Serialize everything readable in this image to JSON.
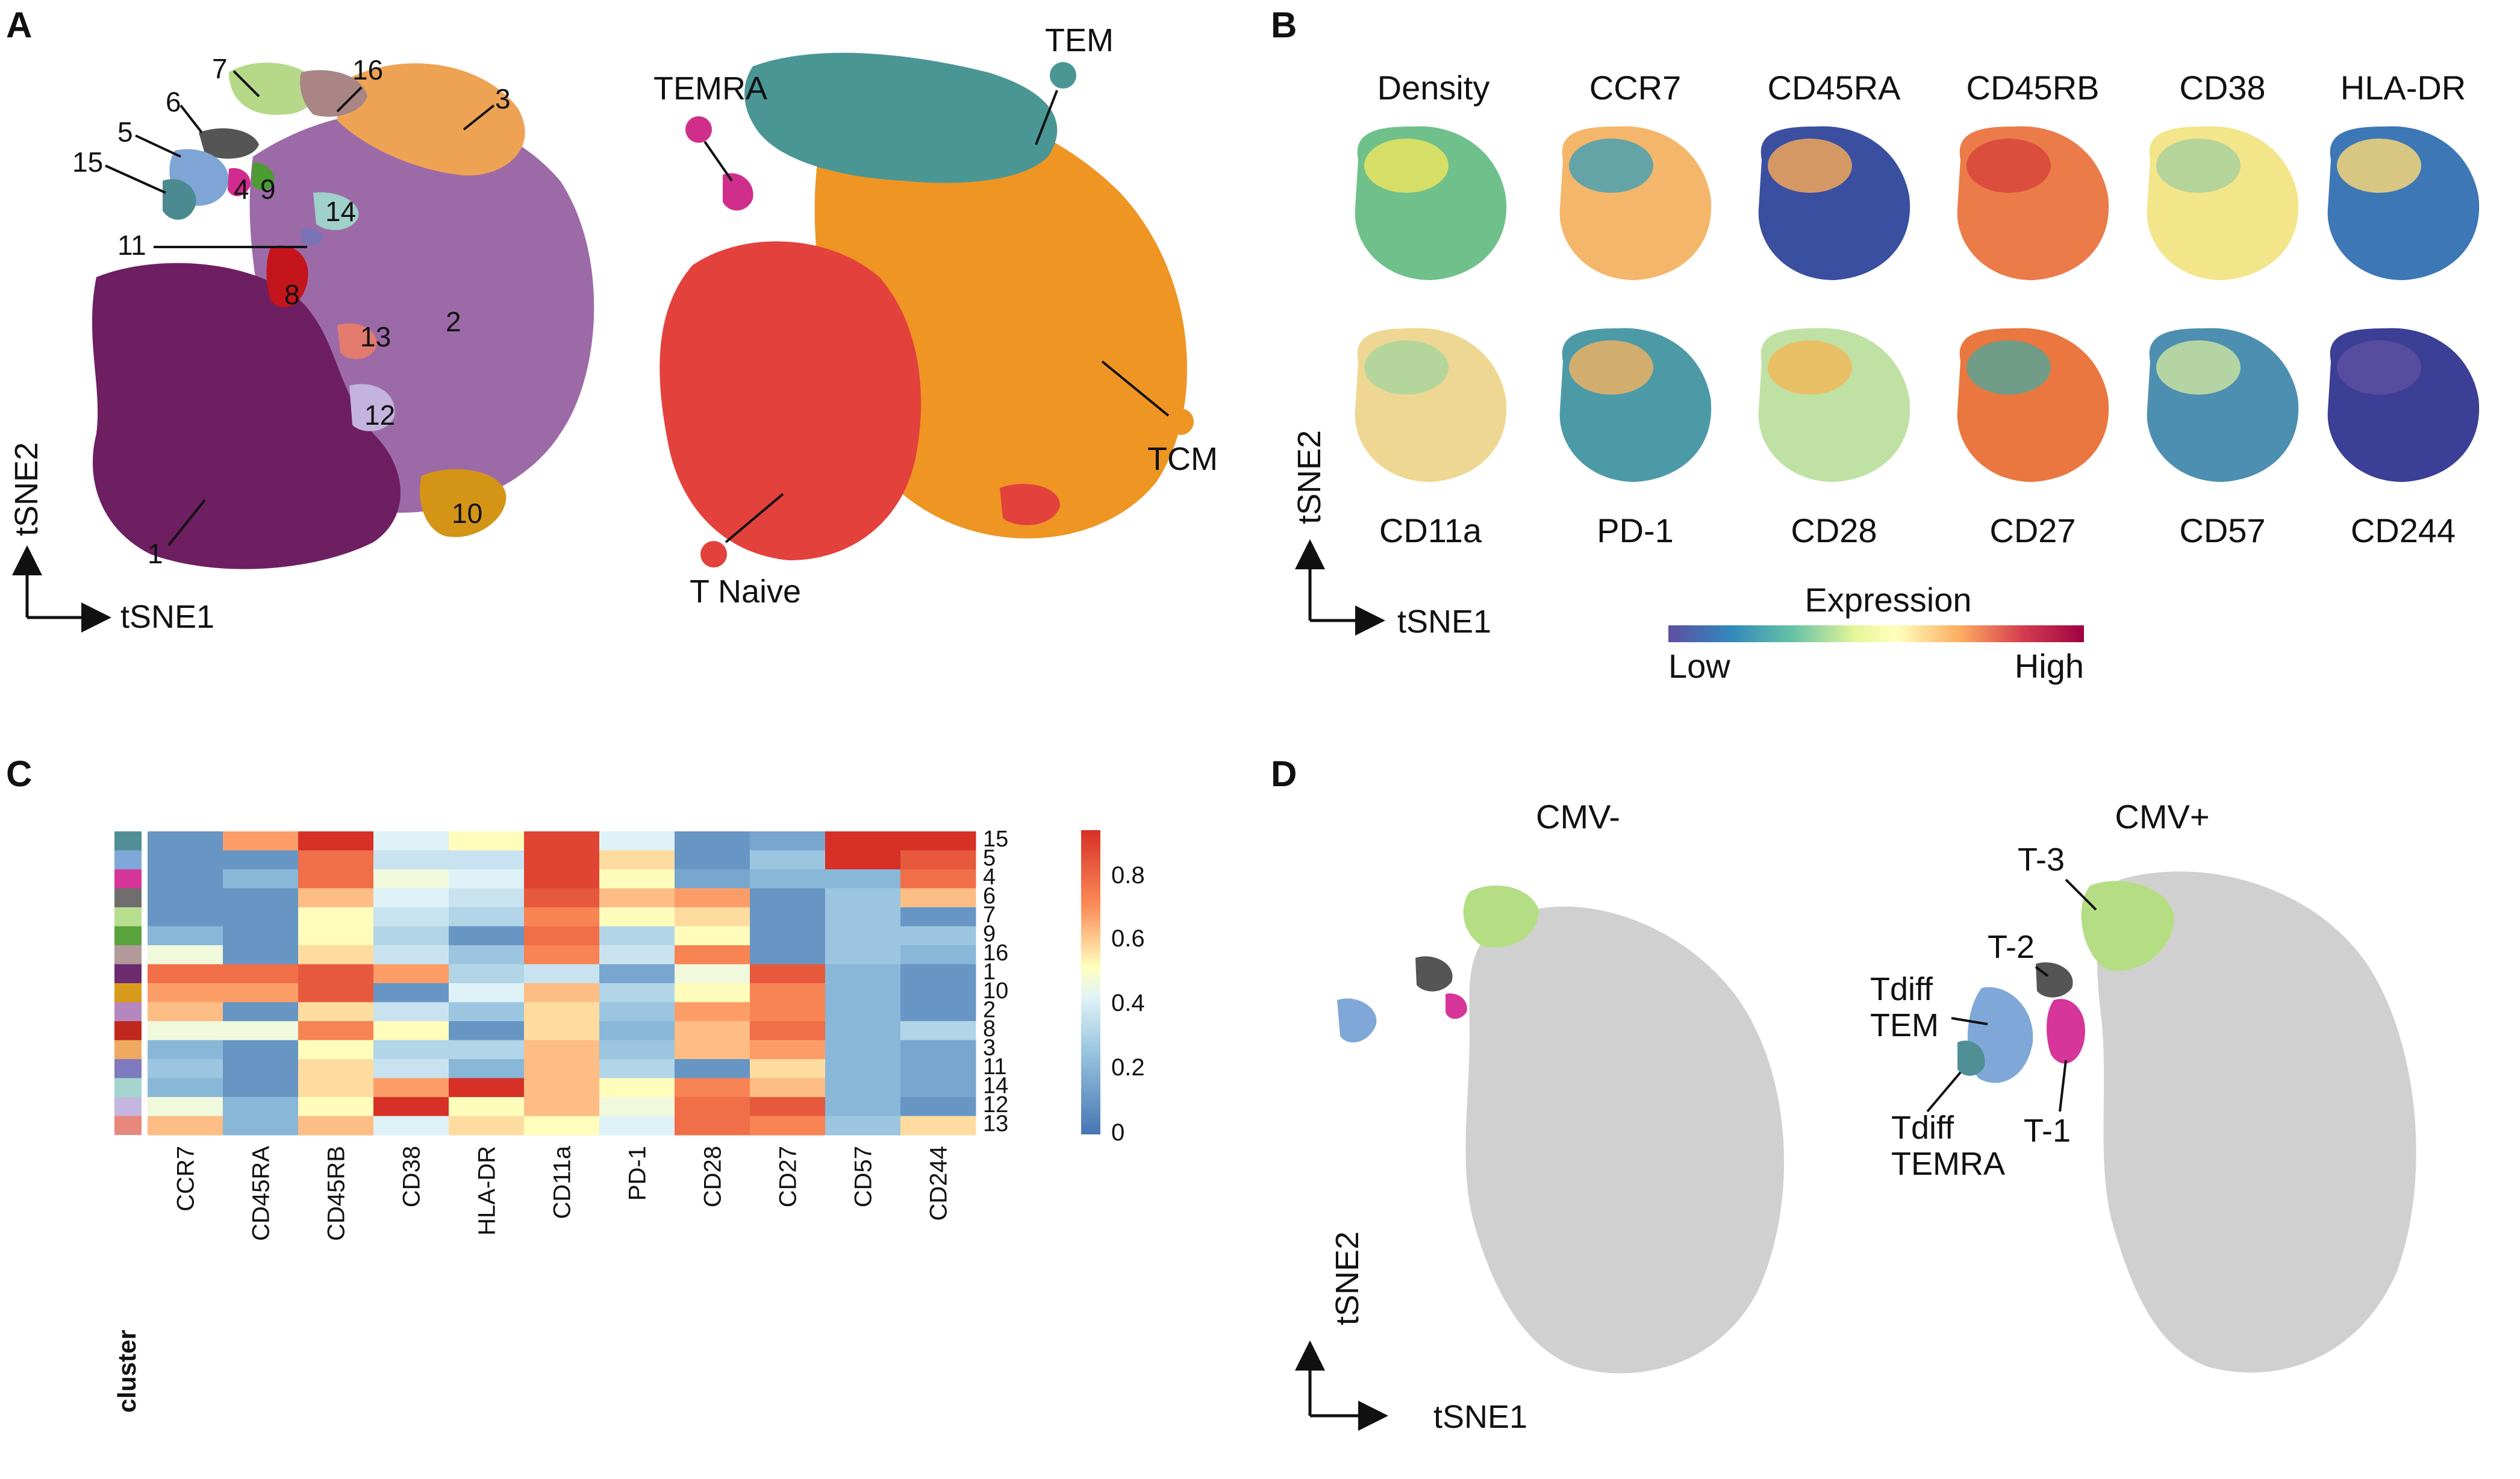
{
  "panels": {
    "A": {
      "label": "A",
      "cluster_labels": [
        "7",
        "16",
        "3",
        "6",
        "5",
        "15",
        "4",
        "9",
        "14",
        "11",
        "8",
        "13",
        "2",
        "12",
        "10",
        "1"
      ],
      "population_labels": {
        "temra": "TEMRA",
        "tem": "TEM",
        "tcm": "TCM",
        "naive": "T Naive"
      },
      "axis_x": "tSNE1",
      "axis_y": "tSNE2"
    },
    "B": {
      "label": "B",
      "markers_top": [
        "Density",
        "CCR7",
        "CD45RA",
        "CD45RB",
        "CD38",
        "HLA-DR"
      ],
      "markers_bottom": [
        "CD11a",
        "PD-1",
        "CD28",
        "CD27",
        "CD57",
        "CD244"
      ],
      "axis_x": "tSNE1",
      "axis_y": "tSNE2",
      "legend_title": "Expression",
      "legend_low": "Low",
      "legend_high": "High"
    },
    "C": {
      "label": "C",
      "heatmap_title_col": "cluster",
      "colorbar_ticks": [
        "0.8",
        "0.6",
        "0.4",
        "0.2",
        "0"
      ]
    },
    "D": {
      "label": "D",
      "title_left": "CMV-",
      "title_right": "CMV+",
      "annotations": {
        "t3": "T-3",
        "t2": "T-2",
        "tdiff_tem_1": "Tdiff",
        "tdiff_tem_2": "TEM",
        "tdiff_temra_1": "Tdiff",
        "tdiff_temra_2": "TEMRA",
        "t1": "T-1"
      },
      "axis_x": "tSNE1",
      "axis_y": "tSNE2"
    }
  },
  "chart_data": {
    "type": "heatmap",
    "title": "",
    "columns": [
      "CCR7",
      "CD45RA",
      "CD45RB",
      "CD38",
      "HLA-DR",
      "CD11a",
      "PD-1",
      "CD28",
      "CD27",
      "CD57",
      "CD244"
    ],
    "rows": [
      "15",
      "5",
      "4",
      "6",
      "7",
      "9",
      "16",
      "1",
      "10",
      "2",
      "8",
      "3",
      "11",
      "14",
      "12",
      "13"
    ],
    "row_colors": [
      "#4f8f95",
      "#7fa8d8",
      "#d6359a",
      "#6e6e6e",
      "#b9dd8e",
      "#5aa33c",
      "#b39a9a",
      "#6e2a6f",
      "#d99a1c",
      "#b488bd",
      "#c0271f",
      "#f0aa60",
      "#7f79bd",
      "#a5d5cf",
      "#c4b6e0",
      "#e8877c"
    ],
    "values": [
      [
        0.1,
        0.65,
        0.9,
        0.4,
        0.5,
        0.85,
        0.4,
        0.1,
        0.15,
        0.9,
        0.9
      ],
      [
        0.1,
        0.1,
        0.75,
        0.35,
        0.35,
        0.85,
        0.55,
        0.1,
        0.25,
        0.9,
        0.8
      ],
      [
        0.1,
        0.2,
        0.75,
        0.45,
        0.4,
        0.85,
        0.5,
        0.15,
        0.2,
        0.2,
        0.75
      ],
      [
        0.1,
        0.1,
        0.6,
        0.4,
        0.35,
        0.8,
        0.6,
        0.65,
        0.1,
        0.25,
        0.6
      ],
      [
        0.1,
        0.1,
        0.5,
        0.35,
        0.3,
        0.7,
        0.5,
        0.55,
        0.1,
        0.25,
        0.1
      ],
      [
        0.2,
        0.1,
        0.5,
        0.3,
        0.1,
        0.75,
        0.3,
        0.5,
        0.1,
        0.25,
        0.25
      ],
      [
        0.45,
        0.1,
        0.55,
        0.35,
        0.25,
        0.7,
        0.35,
        0.7,
        0.1,
        0.25,
        0.2
      ],
      [
        0.75,
        0.75,
        0.8,
        0.65,
        0.3,
        0.35,
        0.15,
        0.45,
        0.8,
        0.2,
        0.1
      ],
      [
        0.65,
        0.65,
        0.8,
        0.1,
        0.4,
        0.6,
        0.3,
        0.5,
        0.7,
        0.2,
        0.1
      ],
      [
        0.6,
        0.1,
        0.55,
        0.35,
        0.25,
        0.55,
        0.25,
        0.65,
        0.7,
        0.2,
        0.1
      ],
      [
        0.45,
        0.45,
        0.7,
        0.5,
        0.1,
        0.55,
        0.2,
        0.6,
        0.75,
        0.2,
        0.3
      ],
      [
        0.2,
        0.1,
        0.5,
        0.3,
        0.3,
        0.6,
        0.25,
        0.6,
        0.65,
        0.2,
        0.15
      ],
      [
        0.25,
        0.1,
        0.55,
        0.35,
        0.2,
        0.6,
        0.3,
        0.1,
        0.55,
        0.2,
        0.15
      ],
      [
        0.2,
        0.1,
        0.55,
        0.65,
        0.9,
        0.6,
        0.5,
        0.7,
        0.6,
        0.2,
        0.15
      ],
      [
        0.45,
        0.2,
        0.5,
        0.9,
        0.5,
        0.6,
        0.45,
        0.75,
        0.8,
        0.2,
        0.1
      ],
      [
        0.6,
        0.2,
        0.6,
        0.4,
        0.55,
        0.5,
        0.4,
        0.75,
        0.7,
        0.25,
        0.55
      ]
    ],
    "colorbar": {
      "min": 0,
      "max": 0.9,
      "ticks": [
        0,
        0.2,
        0.4,
        0.6,
        0.8
      ],
      "colormap": "RdYlBu_r"
    }
  }
}
